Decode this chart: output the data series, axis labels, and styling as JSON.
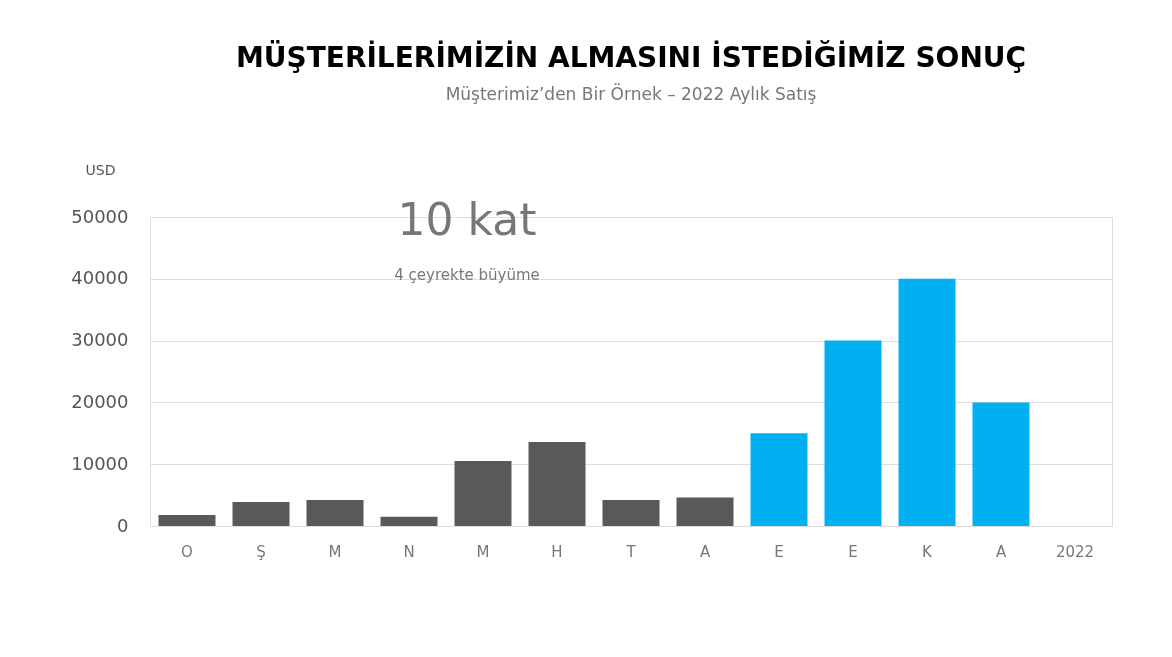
{
  "chart_data": {
    "type": "bar",
    "title": "MÜŞTERİLERİMİZİN ALMASINI İSTEDİĞİMİZ SONUÇ",
    "subtitle": "Müşterimiz’den Bir Örnek – 2022 Aylık Satış",
    "ylabel": "USD",
    "categories": [
      "O",
      "Ş",
      "M",
      "N",
      "M",
      "H",
      "T",
      "A",
      "E",
      "E",
      "K",
      "A",
      "2022"
    ],
    "values": [
      1800,
      3900,
      4200,
      1500,
      10500,
      13600,
      4200,
      4600,
      15000,
      30000,
      40000,
      20000,
      null
    ],
    "colors": [
      "#595959",
      "#595959",
      "#595959",
      "#595959",
      "#595959",
      "#595959",
      "#595959",
      "#595959",
      "#00b0f0",
      "#00b0f0",
      "#00b0f0",
      "#00b0f0",
      "#00b0f0"
    ],
    "ylim": [
      0,
      50000
    ],
    "yticks": [
      0,
      10000,
      20000,
      30000,
      40000,
      50000
    ],
    "grid": "y",
    "annotations": [
      "10 kat",
      "4 çeyrekte büyüme"
    ]
  }
}
